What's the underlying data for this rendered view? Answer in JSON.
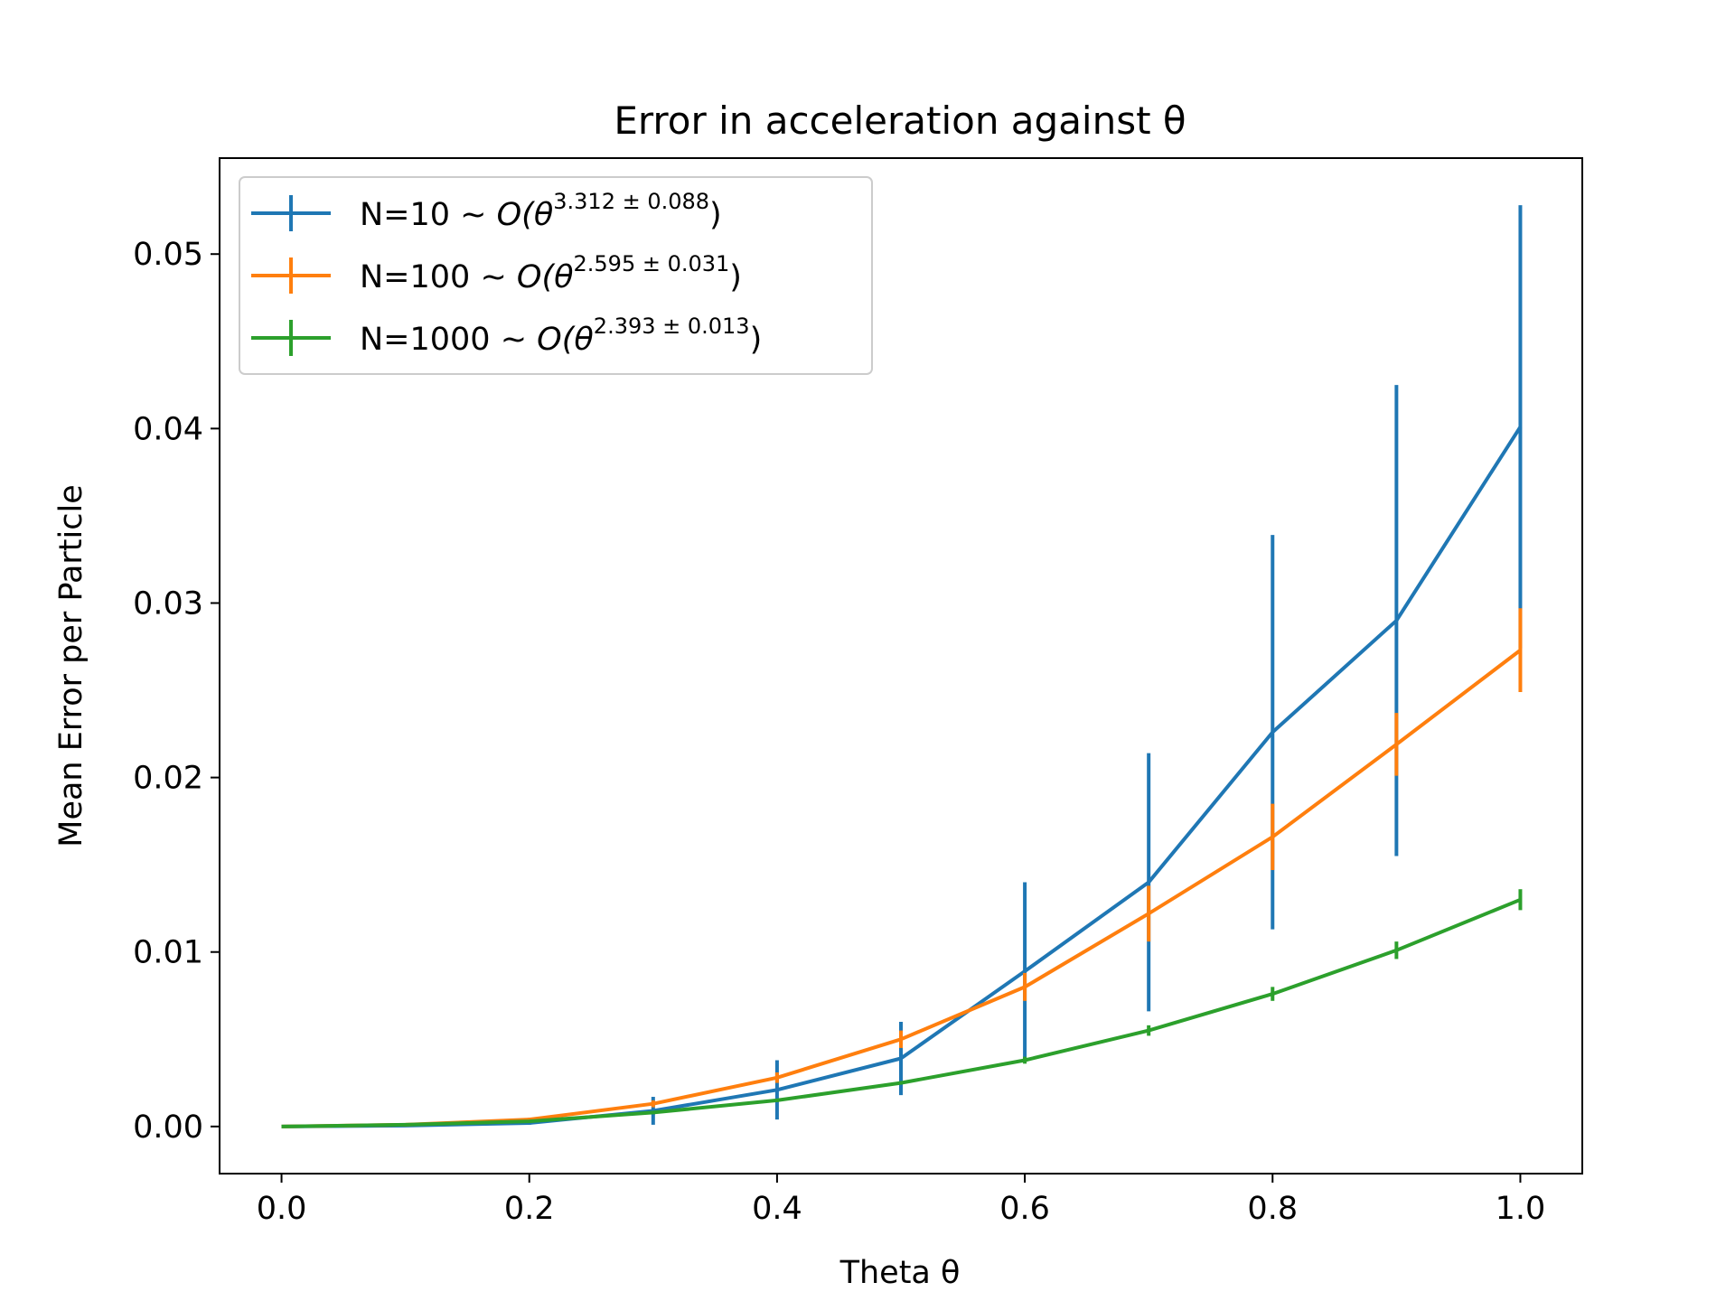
{
  "chart_data": {
    "type": "line",
    "title": "Error in acceleration against θ",
    "xlabel": "Theta θ",
    "ylabel": "Mean Error per Particle",
    "xlim": [
      -0.05,
      1.05
    ],
    "ylim": [
      -0.0027,
      0.0555
    ],
    "xticks": [
      0.0,
      0.2,
      0.4,
      0.6,
      0.8,
      1.0
    ],
    "xtick_labels": [
      "0.0",
      "0.2",
      "0.4",
      "0.6",
      "0.8",
      "1.0"
    ],
    "yticks": [
      0.0,
      0.01,
      0.02,
      0.03,
      0.04,
      0.05
    ],
    "ytick_labels": [
      "0.00",
      "0.01",
      "0.02",
      "0.03",
      "0.04",
      "0.05"
    ],
    "grid": false,
    "legend_position": "top-left",
    "x": [
      0.0,
      0.1,
      0.2,
      0.3,
      0.4,
      0.5,
      0.6,
      0.7,
      0.8,
      0.9,
      1.0
    ],
    "series": [
      {
        "name": "N=10",
        "legend_prefix": "N=10  ~ ",
        "legend_big_o": "O(θ",
        "legend_exp": "3.312 ± 0.088",
        "legend_close": ")",
        "color": "#1f77b4",
        "values": [
          0.0,
          5e-05,
          0.0002,
          0.0009,
          0.0021,
          0.0039,
          0.0089,
          0.014,
          0.0226,
          0.029,
          0.0401
        ],
        "errors": [
          0.0,
          3e-05,
          0.0001,
          0.0008,
          0.0017,
          0.0021,
          0.0051,
          0.0074,
          0.0113,
          0.0135,
          0.0127
        ]
      },
      {
        "name": "N=100",
        "legend_prefix": "N=100  ~ ",
        "legend_big_o": "O(θ",
        "legend_exp": "2.595 ± 0.031",
        "legend_close": ")",
        "color": "#ff7f0e",
        "values": [
          0.0,
          0.0001,
          0.0004,
          0.0013,
          0.0028,
          0.005,
          0.008,
          0.0122,
          0.0166,
          0.0219,
          0.0273
        ],
        "errors": [
          0.0,
          5e-05,
          0.0001,
          0.0002,
          0.0003,
          0.0005,
          0.0008,
          0.0016,
          0.0019,
          0.0018,
          0.0024
        ]
      },
      {
        "name": "N=1000",
        "legend_prefix": "N=1000  ~ ",
        "legend_big_o": "O(θ",
        "legend_exp": "2.393 ± 0.013",
        "legend_close": ")",
        "color": "#2ca02c",
        "values": [
          0.0,
          0.0001,
          0.0003,
          0.0008,
          0.0015,
          0.0025,
          0.0038,
          0.0055,
          0.0076,
          0.0101,
          0.013
        ],
        "errors": [
          0.0,
          2e-05,
          5e-05,
          0.0001,
          0.0001,
          0.0001,
          0.0002,
          0.0003,
          0.0004,
          0.0005,
          0.0006
        ]
      }
    ]
  }
}
